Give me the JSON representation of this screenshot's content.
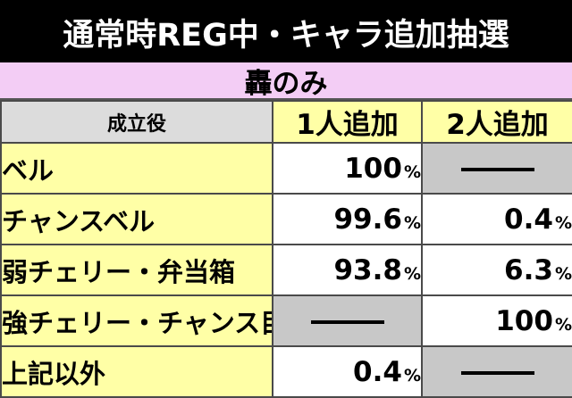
{
  "title": "通常時REG中・キャラ追加抽選",
  "section": "轟のみ",
  "table": {
    "header": {
      "label": "成立役",
      "col1": "1人追加",
      "col2": "2人追加"
    },
    "rows": [
      {
        "label": "ベル",
        "col1": "100",
        "col2": null
      },
      {
        "label": "チャンスベル",
        "col1": "99.6",
        "col2": "0.4"
      },
      {
        "label": "弱チェリー・弁当箱",
        "col1": "93.8",
        "col2": "6.3"
      },
      {
        "label": "強チェリー・チャンス目",
        "col1": null,
        "col2": "100"
      },
      {
        "label": "上記以外",
        "col1": "0.4",
        "col2": null
      }
    ],
    "unit": "%"
  },
  "colors": {
    "title_bg": "#000000",
    "section_bg": "#f3cdf5",
    "label_bg": "#ffffa6",
    "header_label_bg": "#dcdcdc",
    "na_cell_bg": "#c8c8c8"
  },
  "icons": {
    "not_applicable": "dash-icon"
  }
}
